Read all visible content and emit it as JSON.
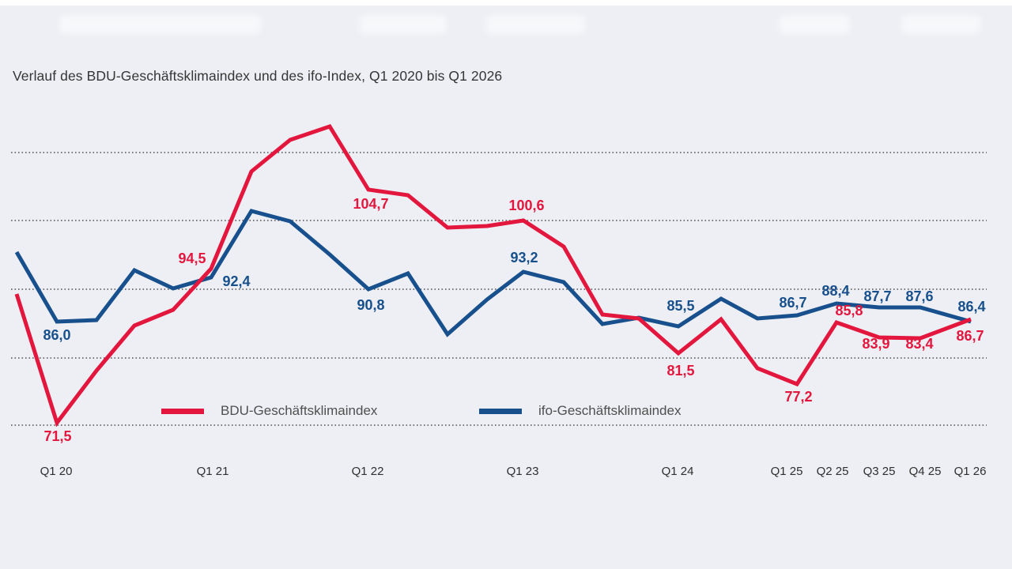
{
  "page": {
    "background_color": "#edeff4",
    "top_strip_color": "#ffffff"
  },
  "title": "Verlauf des BDU-Geschäftsklimaindex und des ifo-Index, Q1 2020 bis Q1 2026",
  "legend": {
    "items": [
      {
        "label": "BDU-Geschäftsklimaindex",
        "color": "#e3173e"
      },
      {
        "label": "ifo-Geschäftsklimaindex",
        "color": "#17508c"
      }
    ]
  },
  "chart_data": {
    "type": "line",
    "title": "Verlauf des BDU-Geschäftsklimaindex und des ifo-Index, Q1 2020 bis Q1 2026",
    "xlabel": "",
    "ylabel": "",
    "x_tick_labels": [
      "Q1 20",
      "Q1 21",
      "Q1 22",
      "Q1 23",
      "Q1 24",
      "Q1 25",
      "Q2 25",
      "Q3 25",
      "Q4 25",
      "Q1 26"
    ],
    "y_gridline_values": [
      110,
      100,
      90,
      80,
      70
    ],
    "y_axis_labels_visible": false,
    "grid": "dotted horizontal lines only",
    "legend_position": "inside bottom center",
    "decimal_separator": ",",
    "note": "Only the points listed in labeled_points carry printed value labels; other quarterly values are estimated from the line trace.",
    "quarters": [
      "Q4 19",
      "Q1 20",
      "Q2 20",
      "Q3 20",
      "Q4 20",
      "Q1 21",
      "Q2 21",
      "Q3 21",
      "Q4 21",
      "Q1 22",
      "Q2 22",
      "Q3 22",
      "Q4 22",
      "Q1 23",
      "Q2 23",
      "Q3 23",
      "Q4 23",
      "Q1 24",
      "Q2 24",
      "Q3 24",
      "Q1 25",
      "Q2 25",
      "Q3 25",
      "Q4 25",
      "Q1 26"
    ],
    "series": [
      {
        "name": "BDU-Geschäftsklimaindex",
        "color": "#e3173e",
        "values": [
          89.6,
          71.5,
          78.7,
          85.2,
          87.5,
          94.5,
          107.4,
          112.0,
          113.9,
          104.7,
          104.0,
          99.3,
          99.4,
          100.6,
          96.6,
          86.9,
          86.2,
          81.5,
          86.1,
          79.0,
          77.2,
          85.8,
          83.9,
          83.4,
          86.7
        ],
        "labeled_points": [
          {
            "quarter": "Q1 20",
            "label": "71,5",
            "value": 71.5
          },
          {
            "quarter": "Q1 21",
            "label": "94,5",
            "value": 94.5
          },
          {
            "quarter": "Q1 22",
            "label": "104,7",
            "value": 104.7
          },
          {
            "quarter": "Q1 23",
            "label": "100,6",
            "value": 100.6
          },
          {
            "quarter": "Q1 24",
            "label": "81,5",
            "value": 81.5
          },
          {
            "quarter": "Q1 25",
            "label": "77,2",
            "value": 77.2
          },
          {
            "quarter": "Q2 25",
            "label": "85,8",
            "value": 85.8
          },
          {
            "quarter": "Q3 25",
            "label": "83,9",
            "value": 83.9
          },
          {
            "quarter": "Q4 25",
            "label": "83,4",
            "value": 83.4
          },
          {
            "quarter": "Q1 26",
            "label": "86,7",
            "value": 86.7
          }
        ]
      },
      {
        "name": "ifo-Geschäftsklimaindex",
        "color": "#17508c",
        "values": [
          95.9,
          86.0,
          86.1,
          93.1,
          90.5,
          92.4,
          101.7,
          100.2,
          95.4,
          90.8,
          92.7,
          84.1,
          88.9,
          93.2,
          91.4,
          85.7,
          86.5,
          85.5,
          89.0,
          86.2,
          86.7,
          88.4,
          87.7,
          87.6,
          86.4
        ],
        "labeled_points": [
          {
            "quarter": "Q1 20",
            "label": "86,0",
            "value": 86.0
          },
          {
            "quarter": "Q1 21",
            "label": "92,4",
            "value": 92.4
          },
          {
            "quarter": "Q1 22",
            "label": "90,8",
            "value": 90.8
          },
          {
            "quarter": "Q1 23",
            "label": "93,2",
            "value": 93.2
          },
          {
            "quarter": "Q1 24",
            "label": "85,5",
            "value": 85.5
          },
          {
            "quarter": "Q1 25",
            "label": "86,7",
            "value": 86.7
          },
          {
            "quarter": "Q2 25",
            "label": "88,4",
            "value": 88.4
          },
          {
            "quarter": "Q3 25",
            "label": "87,7",
            "value": 87.7
          },
          {
            "quarter": "Q4 25",
            "label": "87,6",
            "value": 87.6
          },
          {
            "quarter": "Q1 26",
            "label": "86,4",
            "value": 86.4
          }
        ]
      }
    ]
  },
  "gridline_color": "#3a3a3a",
  "tick_label_color": "#2f2f2f"
}
